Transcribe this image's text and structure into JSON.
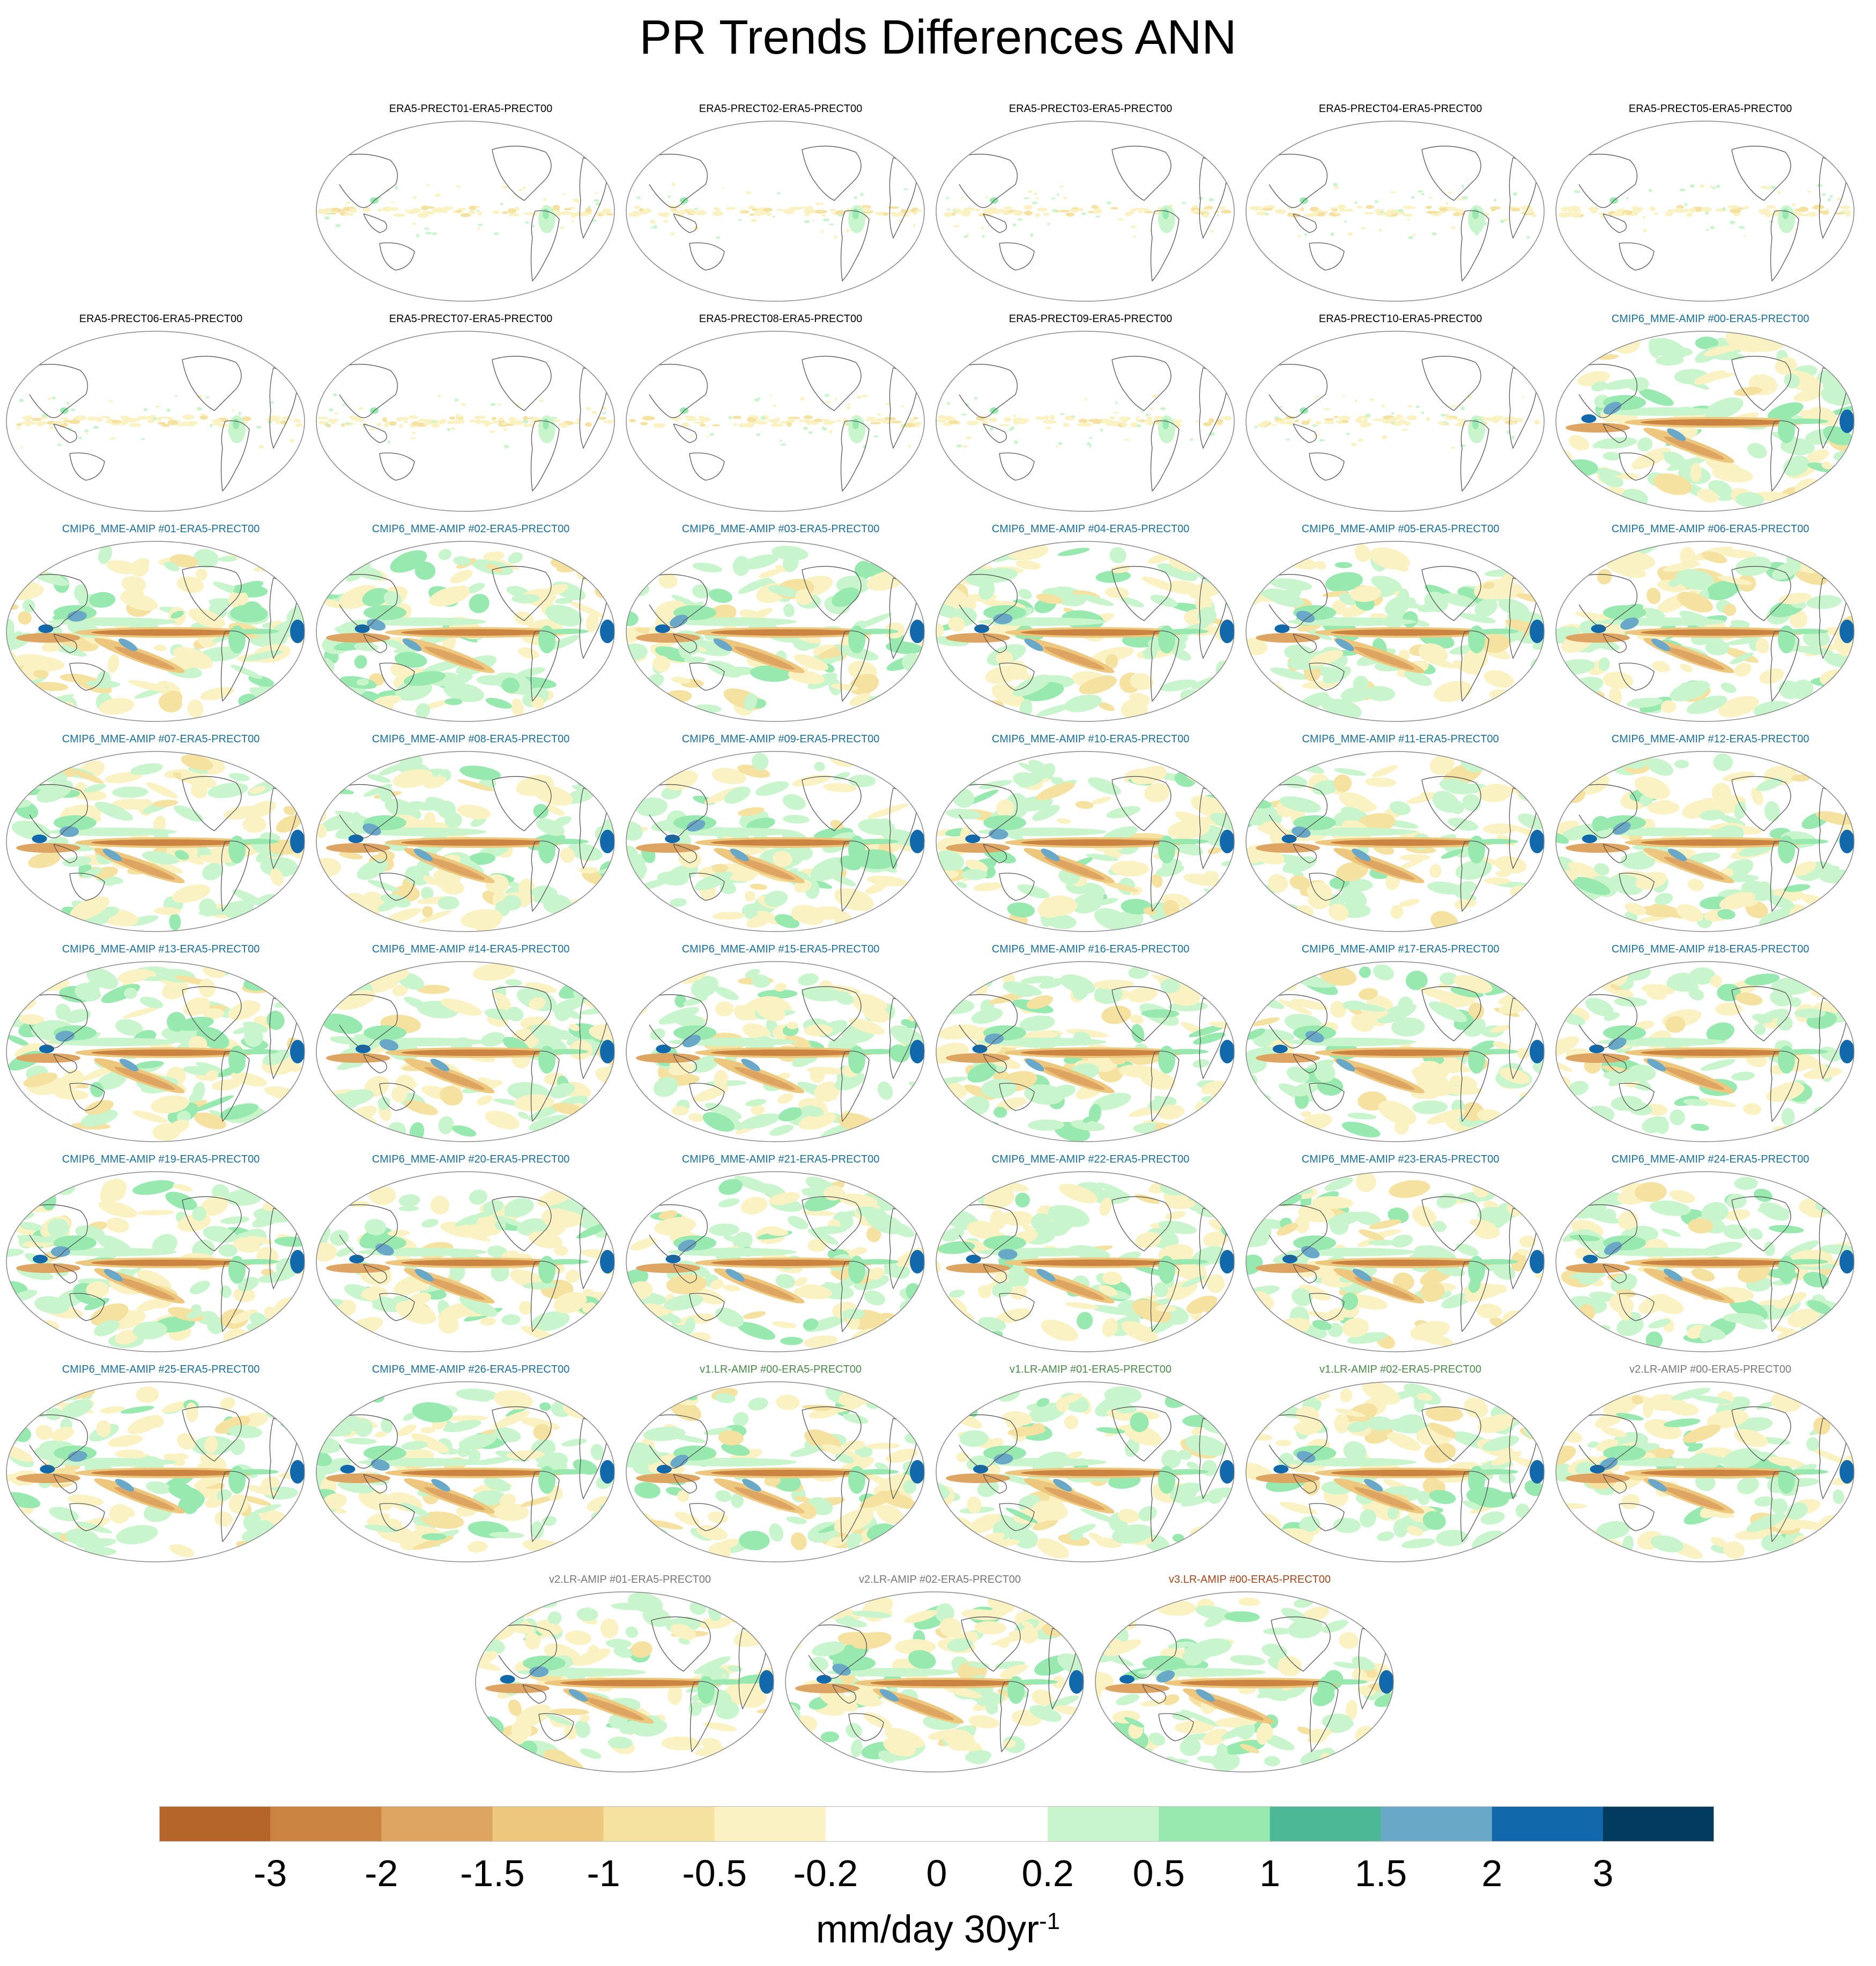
{
  "title": "PR Trends Differences ANN",
  "chart_data": {
    "type": "heatmap",
    "projection": "global map panels",
    "panels": [
      {
        "title": "ERA5-PRECT01-ERA5-PRECT00",
        "group": "ERA5",
        "color": "#000000"
      },
      {
        "title": "ERA5-PRECT02-ERA5-PRECT00",
        "group": "ERA5",
        "color": "#000000"
      },
      {
        "title": "ERA5-PRECT03-ERA5-PRECT00",
        "group": "ERA5",
        "color": "#000000"
      },
      {
        "title": "ERA5-PRECT04-ERA5-PRECT00",
        "group": "ERA5",
        "color": "#000000"
      },
      {
        "title": "ERA5-PRECT05-ERA5-PRECT00",
        "group": "ERA5",
        "color": "#000000"
      },
      {
        "title": "ERA5-PRECT06-ERA5-PRECT00",
        "group": "ERA5",
        "color": "#000000"
      },
      {
        "title": "ERA5-PRECT07-ERA5-PRECT00",
        "group": "ERA5",
        "color": "#000000"
      },
      {
        "title": "ERA5-PRECT08-ERA5-PRECT00",
        "group": "ERA5",
        "color": "#000000"
      },
      {
        "title": "ERA5-PRECT09-ERA5-PRECT00",
        "group": "ERA5",
        "color": "#000000"
      },
      {
        "title": "ERA5-PRECT10-ERA5-PRECT00",
        "group": "ERA5",
        "color": "#000000"
      },
      {
        "title": "CMIP6_MME-AMIP  #00-ERA5-PRECT00",
        "group": "CMIP6",
        "color": "#1a6f99"
      },
      {
        "title": "CMIP6_MME-AMIP  #01-ERA5-PRECT00",
        "group": "CMIP6",
        "color": "#1a6f99"
      },
      {
        "title": "CMIP6_MME-AMIP  #02-ERA5-PRECT00",
        "group": "CMIP6",
        "color": "#1a6f99"
      },
      {
        "title": "CMIP6_MME-AMIP  #03-ERA5-PRECT00",
        "group": "CMIP6",
        "color": "#1a6f99"
      },
      {
        "title": "CMIP6_MME-AMIP  #04-ERA5-PRECT00",
        "group": "CMIP6",
        "color": "#1a6f99"
      },
      {
        "title": "CMIP6_MME-AMIP  #05-ERA5-PRECT00",
        "group": "CMIP6",
        "color": "#1a6f99"
      },
      {
        "title": "CMIP6_MME-AMIP  #06-ERA5-PRECT00",
        "group": "CMIP6",
        "color": "#1a6f99"
      },
      {
        "title": "CMIP6_MME-AMIP  #07-ERA5-PRECT00",
        "group": "CMIP6",
        "color": "#1a6f99"
      },
      {
        "title": "CMIP6_MME-AMIP  #08-ERA5-PRECT00",
        "group": "CMIP6",
        "color": "#1a6f99"
      },
      {
        "title": "CMIP6_MME-AMIP  #09-ERA5-PRECT00",
        "group": "CMIP6",
        "color": "#1a6f99"
      },
      {
        "title": "CMIP6_MME-AMIP  #10-ERA5-PRECT00",
        "group": "CMIP6",
        "color": "#1a6f99"
      },
      {
        "title": "CMIP6_MME-AMIP  #11-ERA5-PRECT00",
        "group": "CMIP6",
        "color": "#1a6f99"
      },
      {
        "title": "CMIP6_MME-AMIP  #12-ERA5-PRECT00",
        "group": "CMIP6",
        "color": "#1a6f99"
      },
      {
        "title": "CMIP6_MME-AMIP  #13-ERA5-PRECT00",
        "group": "CMIP6",
        "color": "#1a6f99"
      },
      {
        "title": "CMIP6_MME-AMIP  #14-ERA5-PRECT00",
        "group": "CMIP6",
        "color": "#1a6f99"
      },
      {
        "title": "CMIP6_MME-AMIP  #15-ERA5-PRECT00",
        "group": "CMIP6",
        "color": "#1a6f99"
      },
      {
        "title": "CMIP6_MME-AMIP  #16-ERA5-PRECT00",
        "group": "CMIP6",
        "color": "#1a6f99"
      },
      {
        "title": "CMIP6_MME-AMIP  #17-ERA5-PRECT00",
        "group": "CMIP6",
        "color": "#1a6f99"
      },
      {
        "title": "CMIP6_MME-AMIP  #18-ERA5-PRECT00",
        "group": "CMIP6",
        "color": "#1a6f99"
      },
      {
        "title": "CMIP6_MME-AMIP  #19-ERA5-PRECT00",
        "group": "CMIP6",
        "color": "#1a6f99"
      },
      {
        "title": "CMIP6_MME-AMIP  #20-ERA5-PRECT00",
        "group": "CMIP6",
        "color": "#1a6f99"
      },
      {
        "title": "CMIP6_MME-AMIP  #21-ERA5-PRECT00",
        "group": "CMIP6",
        "color": "#1a6f99"
      },
      {
        "title": "CMIP6_MME-AMIP  #22-ERA5-PRECT00",
        "group": "CMIP6",
        "color": "#1a6f99"
      },
      {
        "title": "CMIP6_MME-AMIP  #23-ERA5-PRECT00",
        "group": "CMIP6",
        "color": "#1a6f99"
      },
      {
        "title": "CMIP6_MME-AMIP  #24-ERA5-PRECT00",
        "group": "CMIP6",
        "color": "#1a6f99"
      },
      {
        "title": "CMIP6_MME-AMIP  #25-ERA5-PRECT00",
        "group": "CMIP6",
        "color": "#1a6f99"
      },
      {
        "title": "CMIP6_MME-AMIP  #26-ERA5-PRECT00",
        "group": "CMIP6",
        "color": "#1a6f99"
      },
      {
        "title": "v1.LR-AMIP  #00-ERA5-PRECT00",
        "group": "v1",
        "color": "#4a8a4a"
      },
      {
        "title": "v1.LR-AMIP  #01-ERA5-PRECT00",
        "group": "v1",
        "color": "#4a8a4a"
      },
      {
        "title": "v1.LR-AMIP  #02-ERA5-PRECT00",
        "group": "v1",
        "color": "#4a8a4a"
      },
      {
        "title": "v2.LR-AMIP  #00-ERA5-PRECT00",
        "group": "v2",
        "color": "#777777"
      },
      {
        "title": "v2.LR-AMIP  #01-ERA5-PRECT00",
        "group": "v2",
        "color": "#777777"
      },
      {
        "title": "v2.LR-AMIP  #02-ERA5-PRECT00",
        "group": "v2",
        "color": "#777777"
      },
      {
        "title": "v3.LR-AMIP  #00-ERA5-PRECT00",
        "group": "v3",
        "color": "#a0461a"
      }
    ],
    "colorbar": {
      "levels": [
        "-3",
        "-2",
        "-1.5",
        "-1",
        "-0.5",
        "-0.2",
        "0",
        "0.2",
        "0.5",
        "1",
        "1.5",
        "2",
        "3"
      ],
      "colors": [
        "#b5652a",
        "#cb843f",
        "#dea562",
        "#eec77e",
        "#f5e1a0",
        "#fbf2c3",
        "#ffffff",
        "#ffffff",
        "#c9f5cc",
        "#97e9b0",
        "#4db898",
        "#6aa8c7",
        "#1168ab",
        "#023a5e"
      ],
      "label": "mm/day 30yr",
      "label_exponent": "-1"
    }
  }
}
